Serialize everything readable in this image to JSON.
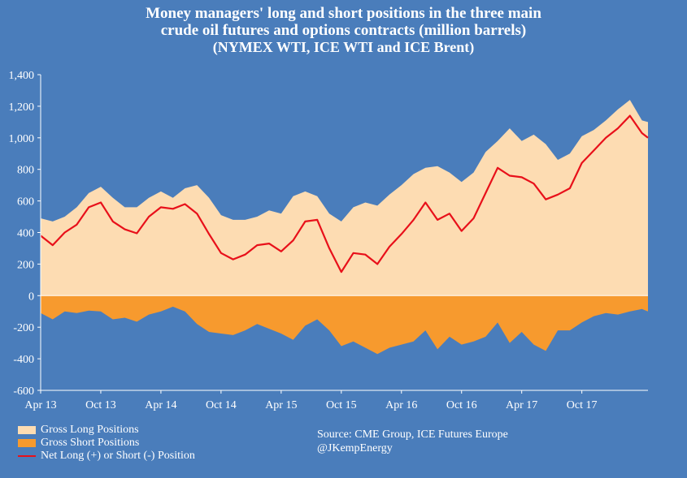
{
  "colors": {
    "background": "#4a7dbb",
    "long_fill": "#fddcb2",
    "short_fill": "#f79a2e",
    "net_line": "#e8101a",
    "text": "#ffffff"
  },
  "chart_data": {
    "type": "area",
    "title": [
      "Money managers' long and short positions in the three main",
      "crude oil futures and options contracts (million barrels)",
      "(NYMEX WTI, ICE WTI and ICE Brent)"
    ],
    "xlabel": "",
    "ylabel": "",
    "ylim": [
      -600,
      1400
    ],
    "yticks": [
      -600,
      -400,
      -200,
      0,
      200,
      400,
      600,
      800,
      1000,
      1200,
      1400
    ],
    "ytick_labels": [
      "-600",
      "-400",
      "-200",
      "0",
      "200",
      "400",
      "600",
      "800",
      "1,000",
      "1,200",
      "1,400"
    ],
    "xlim": [
      2013.25,
      2018.3
    ],
    "xticks": [
      2013.25,
      2013.75,
      2014.25,
      2014.75,
      2015.25,
      2015.75,
      2016.25,
      2016.75,
      2017.25,
      2017.75
    ],
    "xtick_labels": [
      "Apr 13",
      "Oct 13",
      "Apr 14",
      "Oct 14",
      "Apr 15",
      "Oct 15",
      "Apr 16",
      "Oct 16",
      "Apr 17",
      "Oct 17"
    ],
    "grid": false,
    "x": [
      2013.25,
      2013.35,
      2013.45,
      2013.55,
      2013.65,
      2013.75,
      2013.85,
      2013.95,
      2014.05,
      2014.15,
      2014.25,
      2014.35,
      2014.45,
      2014.55,
      2014.65,
      2014.75,
      2014.85,
      2014.95,
      2015.05,
      2015.15,
      2015.25,
      2015.35,
      2015.45,
      2015.55,
      2015.65,
      2015.75,
      2015.85,
      2015.95,
      2016.05,
      2016.15,
      2016.25,
      2016.35,
      2016.45,
      2016.55,
      2016.65,
      2016.75,
      2016.85,
      2016.95,
      2017.05,
      2017.15,
      2017.25,
      2017.35,
      2017.45,
      2017.55,
      2017.65,
      2017.75,
      2017.85,
      2017.95,
      2018.05,
      2018.15,
      2018.25,
      2018.3
    ],
    "series": [
      {
        "name": "Gross Long Positions",
        "values": [
          490,
          470,
          500,
          560,
          650,
          690,
          620,
          560,
          560,
          620,
          660,
          620,
          680,
          700,
          620,
          510,
          480,
          480,
          500,
          540,
          520,
          630,
          660,
          630,
          520,
          470,
          560,
          590,
          570,
          640,
          700,
          770,
          810,
          820,
          780,
          720,
          780,
          910,
          980,
          1060,
          980,
          1020,
          960,
          860,
          900,
          1010,
          1050,
          1110,
          1180,
          1240,
          1110,
          1100
        ]
      },
      {
        "name": "Gross Short Positions",
        "values": [
          -110,
          -150,
          -100,
          -110,
          -95,
          -100,
          -150,
          -140,
          -165,
          -120,
          -100,
          -70,
          -100,
          -180,
          -230,
          -240,
          -250,
          -220,
          -180,
          -210,
          -240,
          -280,
          -190,
          -150,
          -220,
          -320,
          -290,
          -330,
          -370,
          -330,
          -310,
          -290,
          -220,
          -340,
          -260,
          -310,
          -290,
          -260,
          -170,
          -300,
          -230,
          -310,
          -350,
          -220,
          -220,
          -170,
          -130,
          -110,
          -120,
          -100,
          -85,
          -100
        ]
      },
      {
        "name": "Net Long (+) or Short (-) Position",
        "values": [
          380,
          320,
          400,
          450,
          560,
          590,
          470,
          420,
          395,
          500,
          560,
          550,
          580,
          520,
          390,
          270,
          230,
          260,
          320,
          330,
          280,
          350,
          470,
          480,
          300,
          150,
          270,
          260,
          200,
          310,
          390,
          480,
          590,
          480,
          520,
          410,
          490,
          650,
          810,
          760,
          750,
          710,
          610,
          640,
          680,
          840,
          920,
          1000,
          1060,
          1140,
          1030,
          1000
        ]
      }
    ]
  },
  "legend": {
    "items": [
      "Gross Long Positions",
      "Gross Short Positions",
      "Net Long (+) or Short (-) Position"
    ]
  },
  "source": {
    "line1": "Source:  CME Group, ICE Futures Europe",
    "line2": "@JKempEnergy"
  }
}
